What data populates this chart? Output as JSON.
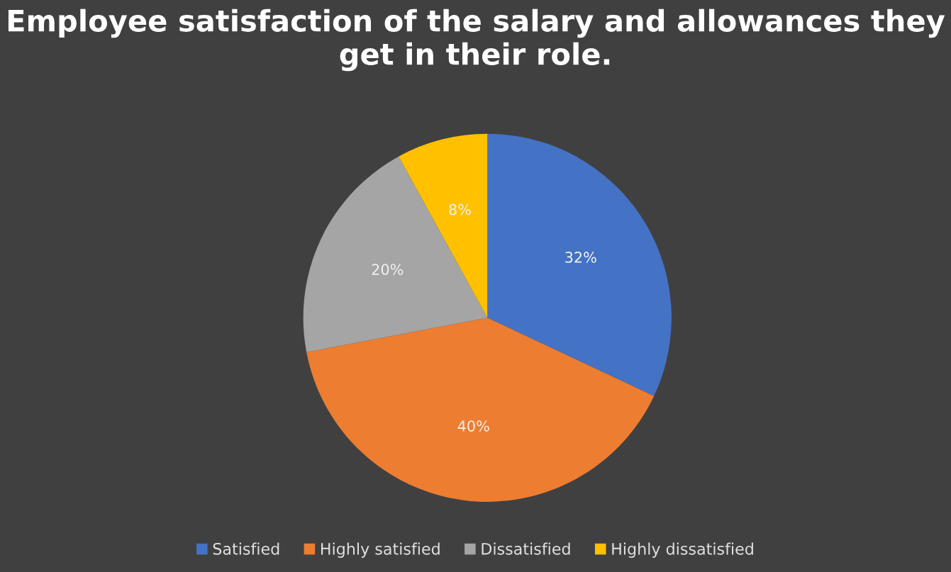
{
  "chart_data": {
    "type": "pie",
    "title": "Employee satisfaction of the salary and allowances they get in their role.",
    "categories": [
      "Satisfied",
      "Highly satisfied",
      "Dissatisfied",
      "Highly dissatisfied"
    ],
    "values": [
      32,
      40,
      20,
      8
    ],
    "value_labels": [
      "32%",
      "40%",
      "20%",
      "8%"
    ],
    "colors": [
      "#4472c4",
      "#ed7d31",
      "#a5a5a5",
      "#ffc000"
    ],
    "legend": "bottom"
  }
}
